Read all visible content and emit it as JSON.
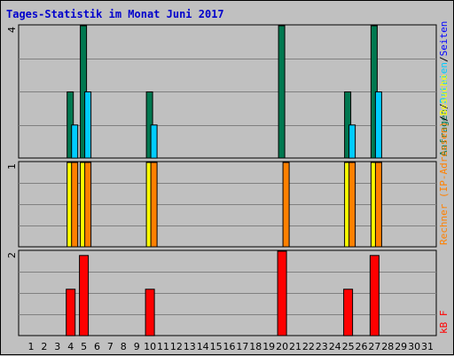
{
  "chart_data": {
    "type": "bar",
    "title": "Tages-Statistik im Monat Juni 2017",
    "days": [
      "1",
      "2",
      "3",
      "4",
      "5",
      "6",
      "7",
      "8",
      "9",
      "10",
      "11",
      "12",
      "13",
      "14",
      "15",
      "16",
      "17",
      "18",
      "19",
      "20",
      "21",
      "22",
      "23",
      "24",
      "25",
      "26",
      "27",
      "28",
      "29",
      "30",
      "31"
    ],
    "weekend_days": [
      3,
      4,
      10,
      11,
      17,
      18,
      24,
      25,
      31
    ],
    "colors": {
      "weekend_label": "#008000",
      "weekday_label": "#000000",
      "title": "#0000cc",
      "plot_bg": "#c0c0c0",
      "grid": "#808080",
      "anfragen": "#007850",
      "dateien": "#00ccff",
      "rechner": "#ff8000",
      "besuche": "#ffff00",
      "kb": "#ff0000"
    },
    "panels": [
      {
        "name": "top",
        "ymax": "4",
        "ylim": [
          0,
          4
        ],
        "labels": [
          {
            "text": "Anfragen",
            "color": "#007850"
          },
          {
            "text": "/",
            "color": "#000000"
          },
          {
            "text": "Dateien",
            "color": "#00ccff"
          },
          {
            "text": "/",
            "color": "#000000"
          },
          {
            "text": "Seiten",
            "color": "#0000ff"
          }
        ],
        "series": [
          {
            "name": "Anfragen",
            "color": "#007850",
            "values": [
              0,
              0,
              0,
              2,
              4,
              0,
              0,
              0,
              0,
              2,
              0,
              0,
              0,
              0,
              0,
              0,
              0,
              0,
              0,
              4,
              0,
              0,
              0,
              0,
              2,
              0,
              4,
              0,
              0,
              0,
              0
            ]
          },
          {
            "name": "Dateien",
            "color": "#00ccff",
            "values": [
              0,
              0,
              0,
              1,
              2,
              0,
              0,
              0,
              0,
              1,
              0,
              0,
              0,
              0,
              0,
              0,
              0,
              0,
              0,
              0,
              0,
              0,
              0,
              0,
              1,
              0,
              2,
              0,
              0,
              0,
              0
            ]
          }
        ]
      },
      {
        "name": "middle",
        "ymax": "1",
        "ylim": [
          0,
          1
        ],
        "labels": [
          {
            "text": "Rechner (IP-Adressen)",
            "color": "#ff8000"
          },
          {
            "text": "/",
            "color": "#000000"
          },
          {
            "text": "Besuche",
            "color": "#ffff00"
          }
        ],
        "series": [
          {
            "name": "Besuche",
            "color": "#ffff00",
            "values": [
              0,
              0,
              0,
              1,
              1,
              0,
              0,
              0,
              0,
              1,
              0,
              0,
              0,
              0,
              0,
              0,
              0,
              0,
              0,
              0,
              0,
              0,
              0,
              0,
              1,
              0,
              1,
              0,
              0,
              0,
              0
            ]
          },
          {
            "name": "Rechner",
            "color": "#ff8000",
            "values": [
              0,
              0,
              0,
              1,
              1,
              0,
              0,
              0,
              0,
              1,
              0,
              0,
              0,
              0,
              0,
              0,
              0,
              0,
              0,
              1,
              0,
              0,
              0,
              0,
              1,
              0,
              1,
              0,
              0,
              0,
              0
            ]
          }
        ]
      },
      {
        "name": "bottom",
        "ymax": "2",
        "ylim": [
          0,
          2
        ],
        "labels": [
          {
            "text": "kB F",
            "color": "#ff0000"
          }
        ],
        "series": [
          {
            "name": "kB F",
            "color": "#ff0000",
            "values": [
              0,
              0,
              0,
              1.1,
              1.9,
              0,
              0,
              0,
              0,
              1.1,
              0,
              0,
              0,
              0,
              0,
              0,
              0,
              0,
              0,
              2,
              0,
              0,
              0,
              0,
              1.1,
              0,
              1.9,
              0,
              0,
              0,
              0
            ]
          }
        ]
      }
    ]
  }
}
